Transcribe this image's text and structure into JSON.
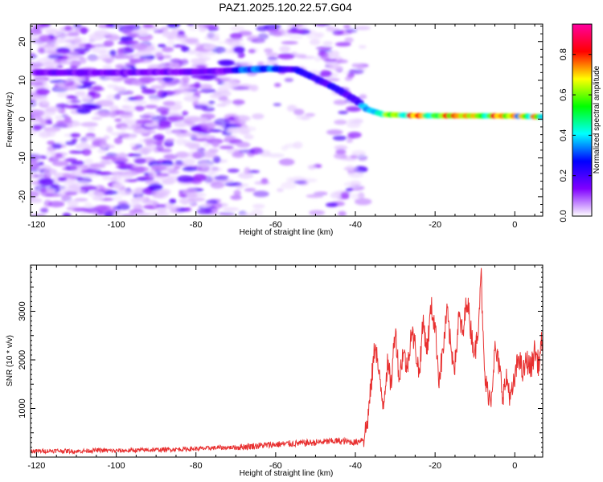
{
  "figure": {
    "title": "PAZ1.2025.120.22.57.G04"
  },
  "chart_data": [
    {
      "type": "heatmap",
      "xlabel": "Height of straight line (km)",
      "ylabel": "Frequency (Hz)",
      "xlim": [
        -121.5,
        7
      ],
      "ylim": [
        -25,
        24.5
      ],
      "xticks": [
        -120,
        -100,
        -80,
        -60,
        -40,
        -20,
        0
      ],
      "yticks": [
        -20,
        -10,
        0,
        10,
        20
      ],
      "ridge_points": [
        {
          "x": -120,
          "y": 12
        },
        {
          "x": -100,
          "y": 12
        },
        {
          "x": -80,
          "y": 12.2
        },
        {
          "x": -70,
          "y": 12.6
        },
        {
          "x": -62,
          "y": 13
        },
        {
          "x": -55,
          "y": 12.8
        },
        {
          "x": -50,
          "y": 10.5
        },
        {
          "x": -45,
          "y": 8
        },
        {
          "x": -40,
          "y": 5
        },
        {
          "x": -37,
          "y": 2.5
        },
        {
          "x": -33,
          "y": 1.2
        },
        {
          "x": -25,
          "y": 0.9
        },
        {
          "x": 0,
          "y": 0.8
        },
        {
          "x": 7,
          "y": 0.6
        }
      ],
      "noise_extent_x": [
        -121.5,
        -38
      ],
      "colorbar": {
        "label": "Normalized spectral amplitude",
        "range": [
          0,
          0.95
        ],
        "ticks": [
          0.0,
          0.2,
          0.4,
          0.6,
          0.8
        ],
        "tick_labels": [
          "0.0",
          "0.2",
          "0.4",
          "0.6",
          "0.8"
        ],
        "colors": [
          "#ffffff",
          "#8000ff",
          "#0000ff",
          "#00ffff",
          "#00ff00",
          "#ffff00",
          "#ff0000",
          "#ff00a0"
        ]
      }
    },
    {
      "type": "line",
      "xlabel": "Height of straight line (km)",
      "ylabel": "SNR (10 * v/v)",
      "xlim": [
        -121.5,
        7
      ],
      "ylim": [
        0,
        3950
      ],
      "xticks": [
        -120,
        -100,
        -80,
        -60,
        -40,
        -20,
        0
      ],
      "yticks": [
        1000,
        2000,
        3000
      ],
      "line_color": "#e83030",
      "series": [
        {
          "x": [
            -121.5,
            -115,
            -110,
            -105,
            -100,
            -95,
            -90,
            -85,
            -80,
            -75,
            -70,
            -65,
            -60,
            -55,
            -50,
            -45,
            -42,
            -40,
            -38,
            -37,
            -36,
            -35,
            -34,
            -33,
            -32,
            -31,
            -30,
            -29,
            -28,
            -27,
            -26,
            -25,
            -24,
            -23,
            -22,
            -21,
            -20,
            -19,
            -18,
            -17,
            -16,
            -15,
            -14,
            -13,
            -12,
            -11,
            -10,
            -9,
            -8.5,
            -8,
            -7.5,
            -7,
            -6,
            -5,
            -4,
            -3,
            -2,
            -1,
            0,
            1,
            2,
            3,
            4,
            5,
            6,
            7
          ],
          "y": [
            120,
            130,
            120,
            140,
            130,
            140,
            150,
            160,
            170,
            190,
            200,
            230,
            260,
            280,
            300,
            330,
            320,
            300,
            380,
            700,
            1500,
            2400,
            1600,
            1100,
            1900,
            1500,
            2700,
            1600,
            2200,
            1800,
            2600,
            2300,
            1700,
            2800,
            2200,
            3100,
            2700,
            1600,
            2200,
            3000,
            2200,
            1900,
            2900,
            2500,
            3300,
            2600,
            2100,
            2900,
            3950,
            2500,
            1600,
            1400,
            1200,
            2200,
            1900,
            1300,
            1600,
            1200,
            1600,
            2100,
            1700,
            2000,
            1800,
            2200,
            1900,
            2500
          ]
        }
      ]
    }
  ]
}
